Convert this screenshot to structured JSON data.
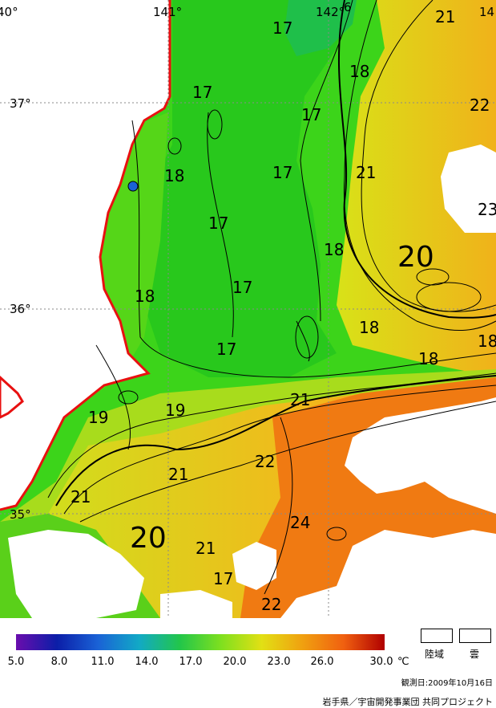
{
  "map": {
    "longitude_labels": [
      "40°",
      "141°",
      "142°",
      "14"
    ],
    "latitude_labels": [
      "37°",
      "36°",
      "35°"
    ],
    "isotherm_labels": [
      "17",
      "17",
      "17",
      "17",
      "17",
      "17",
      "17",
      "17",
      "18",
      "18",
      "18",
      "18",
      "18",
      "18",
      "18",
      "18",
      "19",
      "19",
      "20",
      "20",
      "21",
      "21",
      "21",
      "21",
      "21",
      "21",
      "21",
      "22",
      "22",
      "22",
      "23",
      "24"
    ],
    "extra_numeral": "6"
  },
  "legend": {
    "colorbar_stops": [
      "#6a0dad",
      "#0b1ea8",
      "#1a62d6",
      "#12a9c6",
      "#22c64a",
      "#7ee01f",
      "#e2e014",
      "#f0a010",
      "#f06010",
      "#b00000"
    ],
    "ticks": [
      "5.0",
      "8.0",
      "11.0",
      "14.0",
      "17.0",
      "20.0",
      "23.0",
      "26.0",
      "30.0"
    ],
    "unit": "℃",
    "land_label": "陸域",
    "cloud_label": "雲"
  },
  "footer": {
    "observation_date": "観測日:2009年10月16日",
    "credit": "岩手県／宇宙開発事業団  共同プロジェクト"
  }
}
